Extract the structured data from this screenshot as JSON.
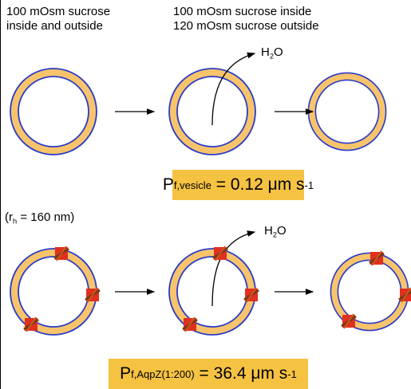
{
  "top_left": [
    "100 mOsm sucrose",
    "inside and outside"
  ],
  "top_right": [
    "100 mOsm sucrose inside",
    "120 mOsm sucrose outside"
  ],
  "water_1": {
    "base": "H",
    "sub": "2",
    "rest": "O"
  },
  "water_2": {
    "base": "H",
    "sub": "2",
    "rest": "O"
  },
  "formula_1": {
    "base": "P",
    "sub": "f,vesicle",
    "rest": " = 0.12 ",
    "unit": "μm s",
    "sup": "-1"
  },
  "radius": {
    "base": "(r",
    "sub": "h",
    "rest": " = 160 nm)"
  },
  "formula_2": {
    "base": "P",
    "sub": "f,AqpZ(1:200)",
    "rest": " = 36.4 ",
    "unit": "μm s",
    "sup": "-1"
  }
}
